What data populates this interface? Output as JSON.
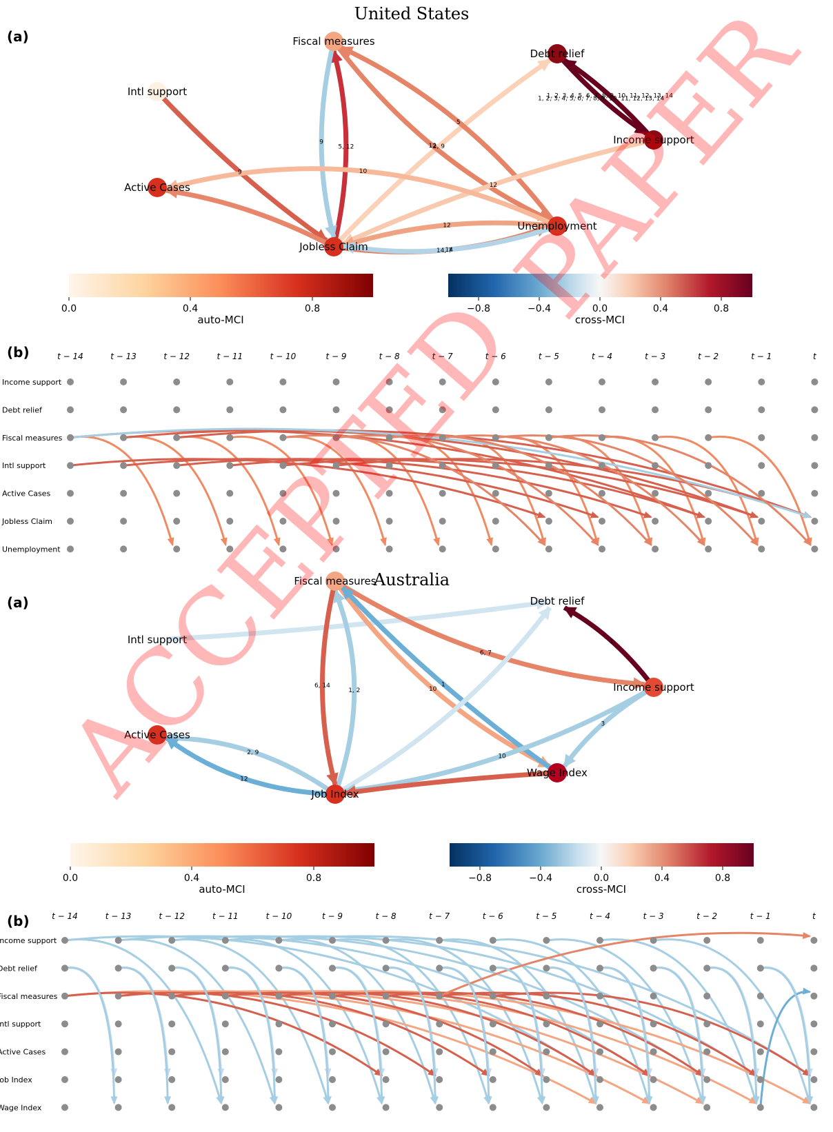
{
  "sections": [
    {
      "title": "United States",
      "panel_a": "(a)",
      "panel_b": "(b)",
      "nodes": [
        {
          "id": "fiscal",
          "label": "Fiscal measures",
          "color": "#f4a582"
        },
        {
          "id": "debt",
          "label": "Debt relief",
          "color": "#8b0a13"
        },
        {
          "id": "intl",
          "label": "Intl support",
          "color": "#fdf2e1"
        },
        {
          "id": "income",
          "label": "Income support",
          "color": "#8b0a13"
        },
        {
          "id": "active",
          "label": "Active Cases",
          "color": "#d7301f"
        },
        {
          "id": "unemp",
          "label": "Unemployment",
          "color": "#d7301f"
        },
        {
          "id": "jobless",
          "label": "Jobless Claim",
          "color": "#d7301f"
        }
      ],
      "edges": [
        {
          "from": "intl",
          "to": "jobless",
          "label": "9",
          "color": "#d6604d"
        },
        {
          "from": "jobless",
          "to": "fiscal",
          "label": "5, 12",
          "color": "#c9313a"
        },
        {
          "from": "fiscal",
          "to": "jobless",
          "label": "9",
          "color": "#a6cee3"
        },
        {
          "from": "jobless",
          "to": "debt",
          "label": "2, 9",
          "color": "#fbd1b7"
        },
        {
          "from": "fiscal",
          "to": "unemp",
          "label": "12",
          "color": "#e58466"
        },
        {
          "from": "unemp",
          "to": "fiscal",
          "label": "5",
          "color": "#e58466"
        },
        {
          "from": "debt",
          "to": "income",
          "label": "1, 2, 3, 4, 5, 6, 7, 8, 9, 10, 11, 12, 13, 14",
          "color": "#67001f"
        },
        {
          "from": "income",
          "to": "debt",
          "label": "1, 2, 3, 4, 5, 6, 7, 8, 9, 10, 11, 12, 13, 14",
          "color": "#67001f"
        },
        {
          "from": "income",
          "to": "jobless",
          "label": "12",
          "color": "#f9c9ad"
        },
        {
          "from": "unemp",
          "to": "active",
          "label": "10",
          "color": "#f7b99a"
        },
        {
          "from": "jobless",
          "to": "active",
          "label": "",
          "color": "#e7866a"
        },
        {
          "from": "jobless",
          "to": "unemp",
          "label": "14, 7",
          "color": "#e38062"
        },
        {
          "from": "unemp",
          "to": "jobless",
          "label": "12",
          "color": "#f0a382"
        },
        {
          "from": "unemp",
          "to": "jobless",
          "label": "14",
          "color": "#b3d4e7"
        }
      ],
      "colorbars": {
        "auto": {
          "title": "auto-MCI",
          "ticks": [
            "0.0",
            "0.4",
            "0.8"
          ]
        },
        "cross": {
          "title": "cross-MCI",
          "ticks": [
            "−0.8",
            "−0.4",
            "0.0",
            "0.4",
            "0.8"
          ]
        }
      },
      "rows": [
        "Income support",
        "Debt relief",
        "Fiscal measures",
        "Intl support",
        "Active Cases",
        "Jobless Claim",
        "Unemployment"
      ]
    },
    {
      "title": "Australia",
      "panel_a": "(a)",
      "panel_b": "(b)",
      "nodes": [
        {
          "id": "fiscal",
          "label": "Fiscal measures",
          "color": "#f4a582"
        },
        {
          "id": "debt",
          "label": "Debt relief",
          "color": "#ffffff"
        },
        {
          "id": "intl",
          "label": "Intl support",
          "color": "#ffffff"
        },
        {
          "id": "income",
          "label": "Income support",
          "color": "#e34a33"
        },
        {
          "id": "active",
          "label": "Active Cases",
          "color": "#d7301f"
        },
        {
          "id": "wage",
          "label": "Wage Index",
          "color": "#b3001f"
        },
        {
          "id": "job",
          "label": "Job Index",
          "color": "#d7301f"
        }
      ],
      "edges": [
        {
          "from": "intl",
          "to": "debt",
          "label": "",
          "color": "#d1e5f0"
        },
        {
          "from": "income",
          "to": "debt",
          "label": "1",
          "color": "#67001f"
        },
        {
          "from": "fiscal",
          "to": "income",
          "label": "6, 7",
          "color": "#e58466"
        },
        {
          "from": "fiscal",
          "to": "wage",
          "label": "10",
          "color": "#f4a582"
        },
        {
          "from": "job",
          "to": "fiscal",
          "label": "1, 2",
          "color": "#a6cee3"
        },
        {
          "from": "fiscal",
          "to": "job",
          "label": "6, 14",
          "color": "#d6604d"
        },
        {
          "from": "wage",
          "to": "fiscal",
          "label": "1",
          "color": "#6baed6"
        },
        {
          "from": "job",
          "to": "debt",
          "label": "",
          "color": "#d1e5f0"
        },
        {
          "from": "income",
          "to": "wage",
          "label": "3",
          "color": "#a6cee3"
        },
        {
          "from": "income",
          "to": "job",
          "label": "10",
          "color": "#a6cee3"
        },
        {
          "from": "wage",
          "to": "job",
          "label": "",
          "color": "#d6604d"
        },
        {
          "from": "job",
          "to": "active",
          "label": "2, 9",
          "color": "#a6cee3"
        },
        {
          "from": "job",
          "to": "active",
          "label": "12",
          "color": "#6baed6"
        }
      ],
      "colorbars": {
        "auto": {
          "title": "auto-MCI",
          "ticks": [
            "0.0",
            "0.4",
            "0.8"
          ]
        },
        "cross": {
          "title": "cross-MCI",
          "ticks": [
            "−0.8",
            "−0.4",
            "0.0",
            "0.4",
            "0.8"
          ]
        }
      },
      "rows": [
        "Income support",
        "Debt relief",
        "Fiscal measures",
        "Intl support",
        "Active Cases",
        "Job Index",
        "Wage Index"
      ]
    }
  ],
  "time_labels": [
    "t − 14",
    "t − 13",
    "t − 12",
    "t − 11",
    "t − 10",
    "t − 9",
    "t − 8",
    "t − 7",
    "t − 6",
    "t − 5",
    "t − 4",
    "t − 3",
    "t − 2",
    "t − 1",
    "t"
  ],
  "watermark": {
    "line1": "ACCEPTED",
    "line2": "PAPER",
    "color": "#ff0000"
  }
}
